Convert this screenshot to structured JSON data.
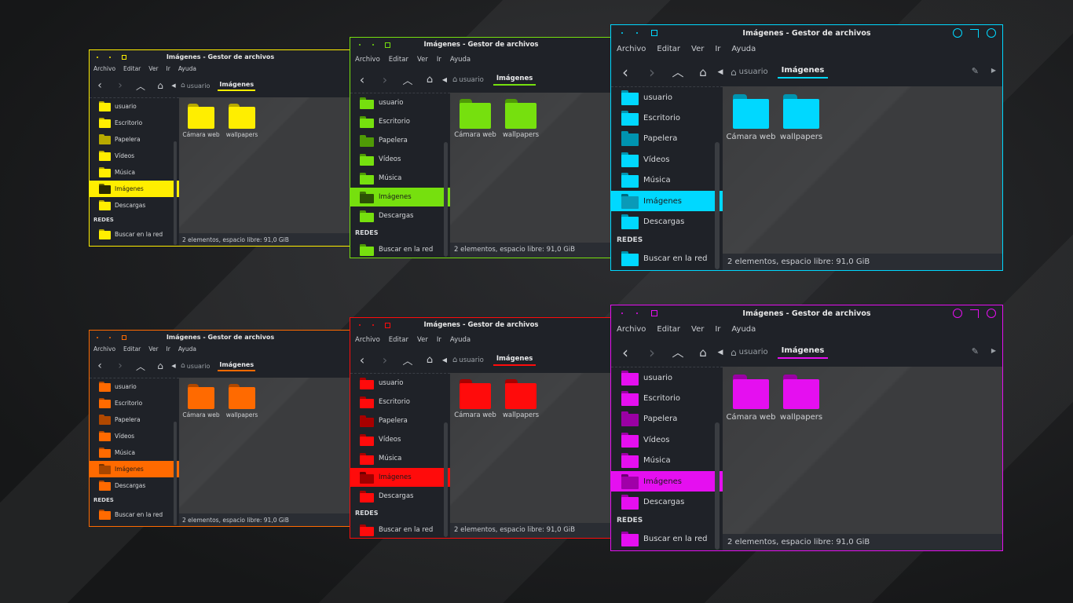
{
  "title": "Imágenes - Gestor de archivos",
  "menu": [
    "Archivo",
    "Editar",
    "Ver",
    "Ir",
    "Ayuda"
  ],
  "breadcrumb": {
    "parent": "usuario",
    "current": "Imágenes"
  },
  "sidebar": {
    "places": [
      "usuario",
      "Escritorio",
      "Papelera",
      "Vídeos",
      "Música",
      "Imágenes",
      "Descargas"
    ],
    "network_heading": "REDES",
    "network": [
      "Buscar en la red"
    ]
  },
  "files": [
    "Cámara web",
    "wallpapers"
  ],
  "status": "2 elementos, espacio libre: 91,0 GiB",
  "icons": {
    "back": "chevron-left-icon",
    "forward": "chevron-right-icon",
    "up": "chevron-up-icon",
    "home": "home-icon",
    "folder": "folder-icon",
    "edit": "pencil-icon"
  },
  "theme_colors": [
    "#ffee00",
    "#76e00e",
    "#00d8ff",
    "#ff6a00",
    "#ff0b0b",
    "#e50ff0"
  ]
}
